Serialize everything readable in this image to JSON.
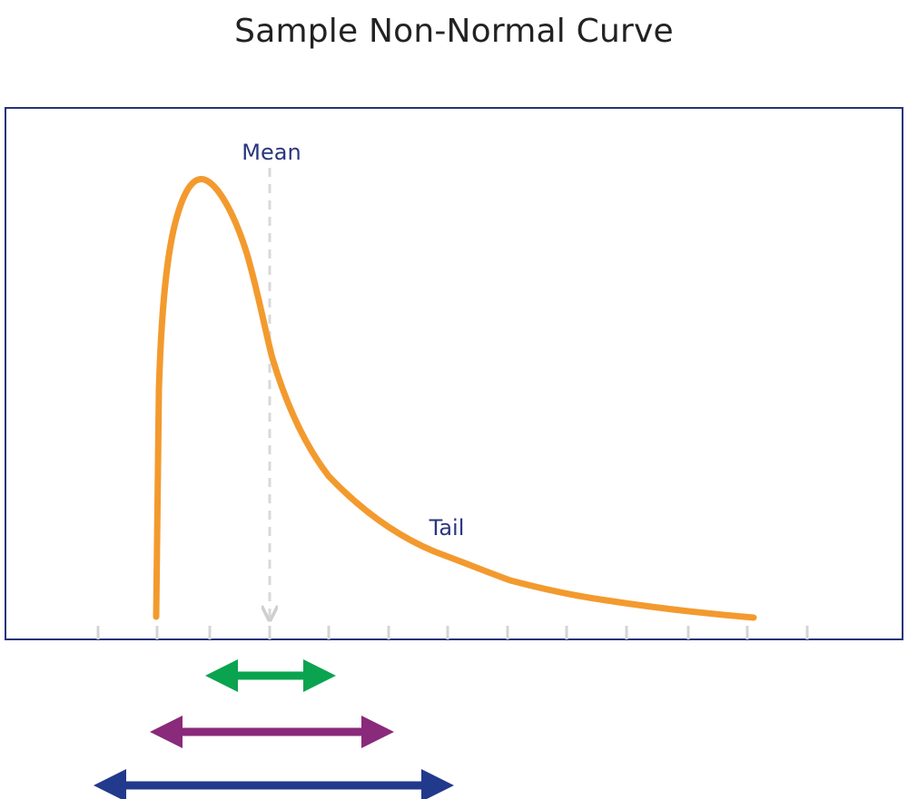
{
  "title": "Sample Non-Normal Curve",
  "annotations": {
    "mean": "Mean",
    "tail": "Tail"
  },
  "colors": {
    "frame": "#26337a",
    "curve": "#f39a2e",
    "mean_line": "#d9d9d9",
    "tick": "#d9d9d9",
    "text": "#2a3580",
    "arrow_1": "#0aa34f",
    "arrow_2": "#8a2a7a",
    "arrow_3": "#223a8c"
  },
  "diagram": {
    "curve_shape": "right-skewed",
    "tick_count": 13,
    "range_arrows": 3
  }
}
